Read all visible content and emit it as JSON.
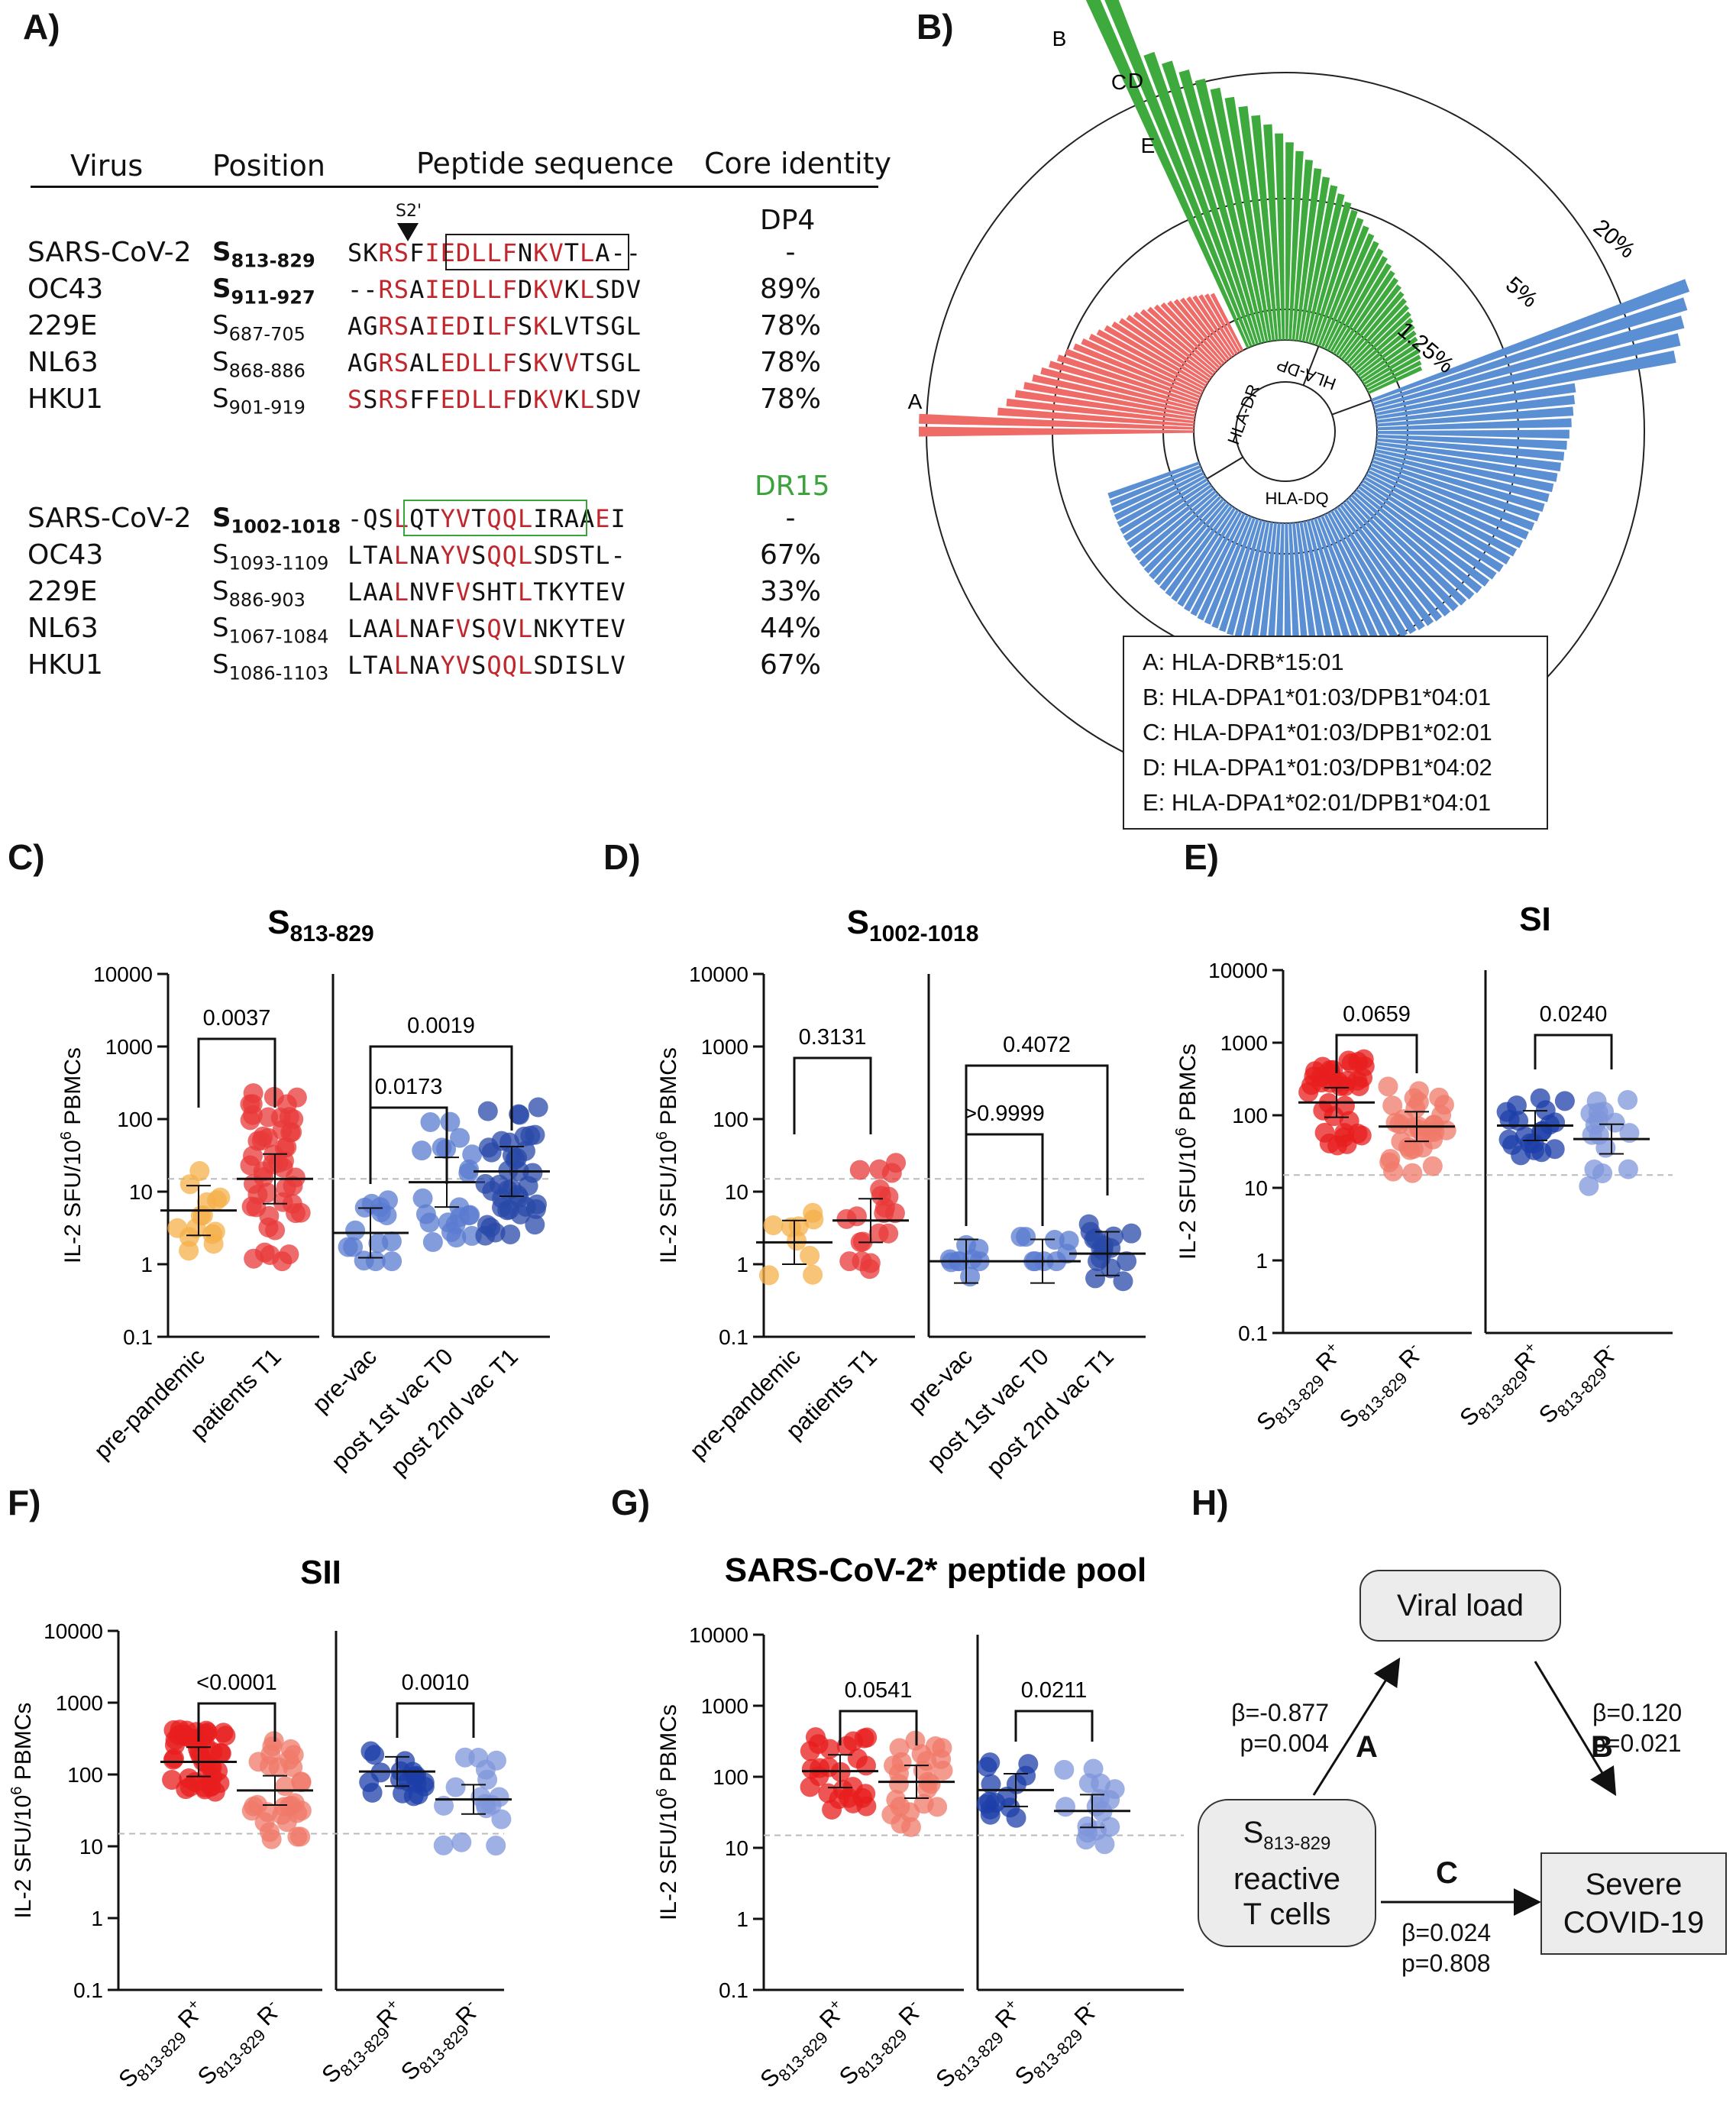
{
  "panels": {
    "a": "A)",
    "b": "B)",
    "c": "C)",
    "d": "D)",
    "e": "E)",
    "f": "F)",
    "g": "G)",
    "h": "H)"
  },
  "tableA": {
    "headers": {
      "virus": "Virus",
      "position": "Position",
      "sequence": "Peptide sequence",
      "core": "Core identity"
    },
    "s2_marker": "S2'",
    "group1": {
      "core_label": "DP4",
      "rows": [
        {
          "virus": "SARS-CoV-2",
          "pos_letter": "S",
          "pos_range": "813-829",
          "identity": "-"
        },
        {
          "virus": "OC43",
          "pos_letter": "S",
          "pos_range": "911-927",
          "identity": "89%"
        },
        {
          "virus": "229E",
          "pos_letter": "S",
          "pos_range": "687-705",
          "identity": "78%"
        },
        {
          "virus": "NL63",
          "pos_letter": "S",
          "pos_range": "868-886",
          "identity": "78%"
        },
        {
          "virus": "HKU1",
          "pos_letter": "S",
          "pos_range": "901-919",
          "identity": "78%"
        }
      ]
    },
    "group2": {
      "core_label": "DR15",
      "rows": [
        {
          "virus": "SARS-CoV-2",
          "pos_letter": "S",
          "pos_range": "1002-1018",
          "identity": "-"
        },
        {
          "virus": "OC43",
          "pos_letter": "S",
          "pos_range": "1093-1109",
          "identity": "67%"
        },
        {
          "virus": "229E",
          "pos_letter": "S",
          "pos_range": "886-903",
          "identity": "33%"
        },
        {
          "virus": "NL63",
          "pos_letter": "S",
          "pos_range": "1067-1084",
          "identity": "44%"
        },
        {
          "virus": "HKU1",
          "pos_letter": "S",
          "pos_range": "1086-1103",
          "identity": "67%"
        }
      ]
    }
  },
  "colors": {
    "red": "#c0262c",
    "green": "#3aa33a",
    "drbar": "#ee6b68",
    "dpbar": "#3eaa3e",
    "dqbar": "#5b8fd4",
    "boxred": "#1a1a1a",
    "boxgreen": "#3aa33a"
  },
  "radial": {
    "rings": [
      "1.25%",
      "5%",
      "20%"
    ],
    "sectors": [
      "HLA-DR",
      "HLA-DP",
      "HLA-DQ"
    ],
    "marks": [
      "A",
      "B",
      "C",
      "D",
      "E"
    ],
    "legend": [
      "A: HLA-DRB*15:01",
      "B: HLA-DPA1*01:03/DPB1*04:01",
      "C: HLA-DPA1*01:03/DPB1*02:01",
      "D: HLA-DPA1*01:03/DPB1*04:02",
      "E: HLA-DPA1*02:01/DPB1*04:01"
    ]
  },
  "ylabel_main": "IL-2 SFU/10",
  "ylabel_sup": "6",
  "ylabel_tail": " PBMCs",
  "yticks": [
    "10000",
    "1000",
    "100",
    "10",
    "1",
    "0.1"
  ],
  "chart_data": [
    {
      "id": "C",
      "type": "scatter",
      "title": "S",
      "title_sub": "813-829",
      "yscale": "log",
      "ylim": [
        0.1,
        10000
      ],
      "threshold": 15,
      "groups": [
        {
          "label": "pre-pandemic",
          "color": "#f5b04a",
          "median": 5.5
        },
        {
          "label": "patients T1",
          "color": "#e83a3a",
          "median": 15
        },
        {
          "label": "pre-vac",
          "color": "#5a7bd0",
          "median": 2.7
        },
        {
          "label": "post 1st vac T0",
          "color": "#5a7bd0",
          "median": 13.5
        },
        {
          "label": "post 2nd vac T1",
          "color": "#2a4aa8",
          "median": 19
        }
      ],
      "pvalues": [
        {
          "text": "0.0037",
          "between": [
            0,
            1
          ]
        },
        {
          "text": "0.0173",
          "between": [
            2,
            3
          ]
        },
        {
          "text": "0.0019",
          "between": [
            2,
            4
          ]
        }
      ]
    },
    {
      "id": "D",
      "type": "scatter",
      "title": "S",
      "title_sub": "1002-1018",
      "yscale": "log",
      "ylim": [
        0.1,
        10000
      ],
      "threshold": 15,
      "groups": [
        {
          "label": "pre-pandemic",
          "color": "#f5b04a",
          "median": 2
        },
        {
          "label": "patients T1",
          "color": "#e83a3a",
          "median": 4
        },
        {
          "label": "pre-vac",
          "color": "#5a7bd0",
          "median": 1.1
        },
        {
          "label": "post 1st vac T0",
          "color": "#5a7bd0",
          "median": 1.1
        },
        {
          "label": "post 2nd vac T1",
          "color": "#2a4aa8",
          "median": 1.4
        }
      ],
      "pvalues": [
        {
          "text": "0.3131",
          "between": [
            0,
            1
          ]
        },
        {
          "text": ">0.9999",
          "between": [
            2,
            3
          ]
        },
        {
          "text": "0.4072",
          "between": [
            2,
            4
          ]
        }
      ]
    },
    {
      "id": "E",
      "type": "scatter",
      "title": "SI",
      "yscale": "log",
      "ylim": [
        0.1,
        10000
      ],
      "threshold": 15,
      "groups": [
        {
          "label_pre": "S",
          "label_sub": "813-829",
          "label_post": " R",
          "label_sup": "+",
          "color": "#e81e1e",
          "median": 150
        },
        {
          "label_pre": "S",
          "label_sub": "813-829",
          "label_post": " R",
          "label_sup": "-",
          "color": "#f07a6a",
          "median": 70
        },
        {
          "label_pre": "S",
          "label_sub": "813-829",
          "label_post": "R",
          "label_sup": "+",
          "color": "#1e3fa8",
          "median": 72
        },
        {
          "label_pre": "S",
          "label_sub": "813-829",
          "label_post": "R",
          "label_sup": "-",
          "color": "#7f95db",
          "median": 47
        }
      ],
      "pvalues": [
        {
          "text": "0.0659",
          "between": [
            0,
            1
          ]
        },
        {
          "text": "0.0240",
          "between": [
            2,
            3
          ]
        }
      ]
    },
    {
      "id": "F",
      "type": "scatter",
      "title": "SII",
      "yscale": "log",
      "ylim": [
        0.1,
        10000
      ],
      "threshold": 15,
      "groups": [
        {
          "label_pre": "S",
          "label_sub": "813-829",
          "label_post": " R",
          "label_sup": "+",
          "color": "#e81e1e",
          "median": 150
        },
        {
          "label_pre": "S",
          "label_sub": "813-829",
          "label_post": " R",
          "label_sup": "-",
          "color": "#f07a6a",
          "median": 60
        },
        {
          "label_pre": "S",
          "label_sub": "813-829",
          "label_post": "R",
          "label_sup": "+",
          "color": "#1e3fa8",
          "median": 110
        },
        {
          "label_pre": "S",
          "label_sub": "813-829",
          "label_post": "R",
          "label_sup": "-",
          "color": "#7f95db",
          "median": 45
        }
      ],
      "pvalues": [
        {
          "text": "<0.0001",
          "between": [
            0,
            1
          ]
        },
        {
          "text": "0.0010",
          "between": [
            2,
            3
          ]
        }
      ]
    },
    {
      "id": "G",
      "type": "scatter",
      "title": "SARS-CoV-2* peptide pool",
      "yscale": "log",
      "ylim": [
        0.1,
        10000
      ],
      "threshold": 15,
      "groups": [
        {
          "label_pre": "S",
          "label_sub": "813-829",
          "label_post": " R",
          "label_sup": "+",
          "color": "#e81e1e",
          "median": 120
        },
        {
          "label_pre": "S",
          "label_sub": "813-829",
          "label_post": " R",
          "label_sup": "-",
          "color": "#f07a6a",
          "median": 85
        },
        {
          "label_pre": "S",
          "label_sub": "813-829",
          "label_post": " R",
          "label_sup": "+",
          "color": "#1e3fa8",
          "median": 65
        },
        {
          "label_pre": "S",
          "label_sub": "813-829",
          "label_post": " R",
          "label_sup": "-",
          "color": "#7f95db",
          "median": 33
        }
      ],
      "pvalues": [
        {
          "text": "0.0541",
          "between": [
            0,
            1
          ]
        },
        {
          "text": "0.0211",
          "between": [
            2,
            3
          ]
        }
      ]
    }
  ],
  "flow": {
    "viral_load": "Viral load",
    "tcell_pre": "S",
    "tcell_sub": "813-829",
    "tcell_l2": "reactive",
    "tcell_l3": "T cells",
    "severe_l1": "Severe",
    "severe_l2": "COVID-19",
    "A": "A",
    "B": "B",
    "C": "C",
    "betaA": "β=-0.877",
    "pA": "p=0.004",
    "betaB": "β=0.120",
    "pB": "p=0.021",
    "betaC": "β=0.024",
    "pC": "p=0.808"
  }
}
